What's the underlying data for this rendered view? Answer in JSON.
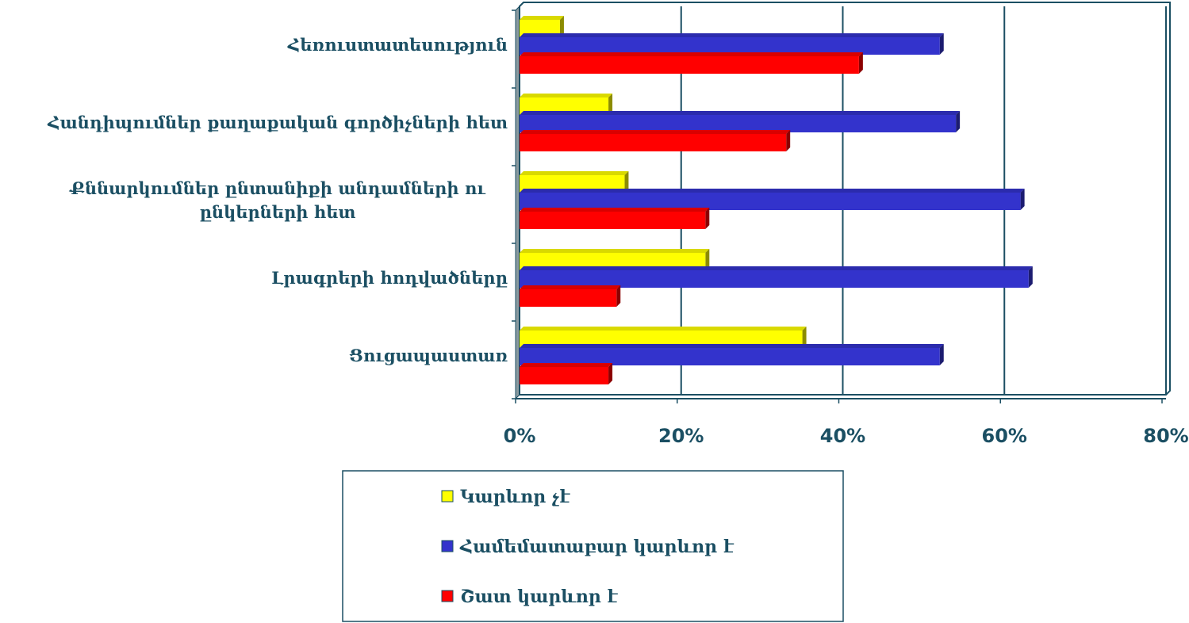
{
  "chart_data": {
    "type": "hbar",
    "categories": [
      "Հեռուստատեսություն",
      "Հանդիպումներ քաղաքական գործիչների հետ",
      "Քննարկումներ ընտանիքի անդամների ու ընկերների հետ",
      "Լրագրերի հոդվածները",
      "Ցուցապաստառ"
    ],
    "series": [
      {
        "name": "Կարևոր չէ",
        "color": "#ffff00",
        "values": [
          5,
          11,
          13,
          23,
          35
        ]
      },
      {
        "name": "Համեմատաբար կարևոր է",
        "color": "#3333cc",
        "values": [
          52,
          54,
          62,
          63,
          52
        ]
      },
      {
        "name": "Շատ կարևոր է",
        "color": "#ff0000",
        "values": [
          42,
          33,
          23,
          12,
          11
        ]
      }
    ],
    "xlim": [
      0,
      80
    ],
    "xticks": [
      {
        "value": 0,
        "label": "0%"
      },
      {
        "value": 20,
        "label": "20%"
      },
      {
        "value": 40,
        "label": "40%"
      },
      {
        "value": 60,
        "label": "60%"
      },
      {
        "value": 80,
        "label": "80%"
      }
    ],
    "grid": true
  }
}
